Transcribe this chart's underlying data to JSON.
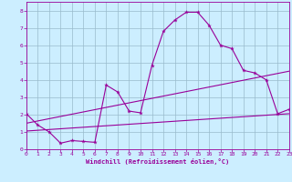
{
  "xlabel": "Windchill (Refroidissement éolien,°C)",
  "bg_color": "#cceeff",
  "line_color": "#990099",
  "grid_color": "#99bbcc",
  "xlim": [
    0,
    23
  ],
  "ylim": [
    0,
    8.5
  ],
  "xticks": [
    0,
    1,
    2,
    3,
    4,
    5,
    6,
    7,
    8,
    9,
    10,
    11,
    12,
    13,
    14,
    15,
    16,
    17,
    18,
    19,
    20,
    21,
    22,
    23
  ],
  "yticks": [
    0,
    1,
    2,
    3,
    4,
    5,
    6,
    7,
    8
  ],
  "series": [
    {
      "x": [
        0,
        1,
        2,
        3,
        4,
        5,
        6,
        7,
        8,
        9,
        10,
        11,
        12,
        13,
        14,
        15,
        16,
        17,
        18,
        19,
        20,
        21,
        22,
        23
      ],
      "y": [
        2.05,
        1.4,
        1.0,
        0.35,
        0.5,
        0.45,
        0.4,
        3.7,
        3.3,
        2.2,
        2.1,
        4.85,
        6.8,
        7.45,
        7.9,
        7.9,
        7.15,
        6.0,
        5.8,
        4.55,
        4.4,
        4.0,
        2.05,
        2.3
      ],
      "marker": true
    },
    {
      "x": [
        0,
        23
      ],
      "y": [
        1.05,
        2.05
      ],
      "marker": false
    },
    {
      "x": [
        0,
        23
      ],
      "y": [
        1.5,
        4.5
      ],
      "marker": false
    }
  ]
}
